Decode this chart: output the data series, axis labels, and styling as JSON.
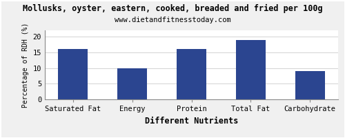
{
  "title": "Mollusks, oyster, eastern, cooked, breaded and fried per 100g",
  "subtitle": "www.dietandfitnesstoday.com",
  "categories": [
    "Saturated Fat",
    "Energy",
    "Protein",
    "Total Fat",
    "Carbohydrate"
  ],
  "values": [
    16,
    10,
    16,
    19,
    9
  ],
  "bar_color": "#2b4590",
  "xlabel": "Different Nutrients",
  "ylabel": "Percentage of RDH (%)",
  "ylim": [
    0,
    22
  ],
  "yticks": [
    0,
    5,
    10,
    15,
    20
  ],
  "background_color": "#f0f0f0",
  "plot_bg_color": "#ffffff",
  "title_fontsize": 8.5,
  "subtitle_fontsize": 7.5,
  "xlabel_fontsize": 8.5,
  "ylabel_fontsize": 7,
  "tick_fontsize": 7.5
}
